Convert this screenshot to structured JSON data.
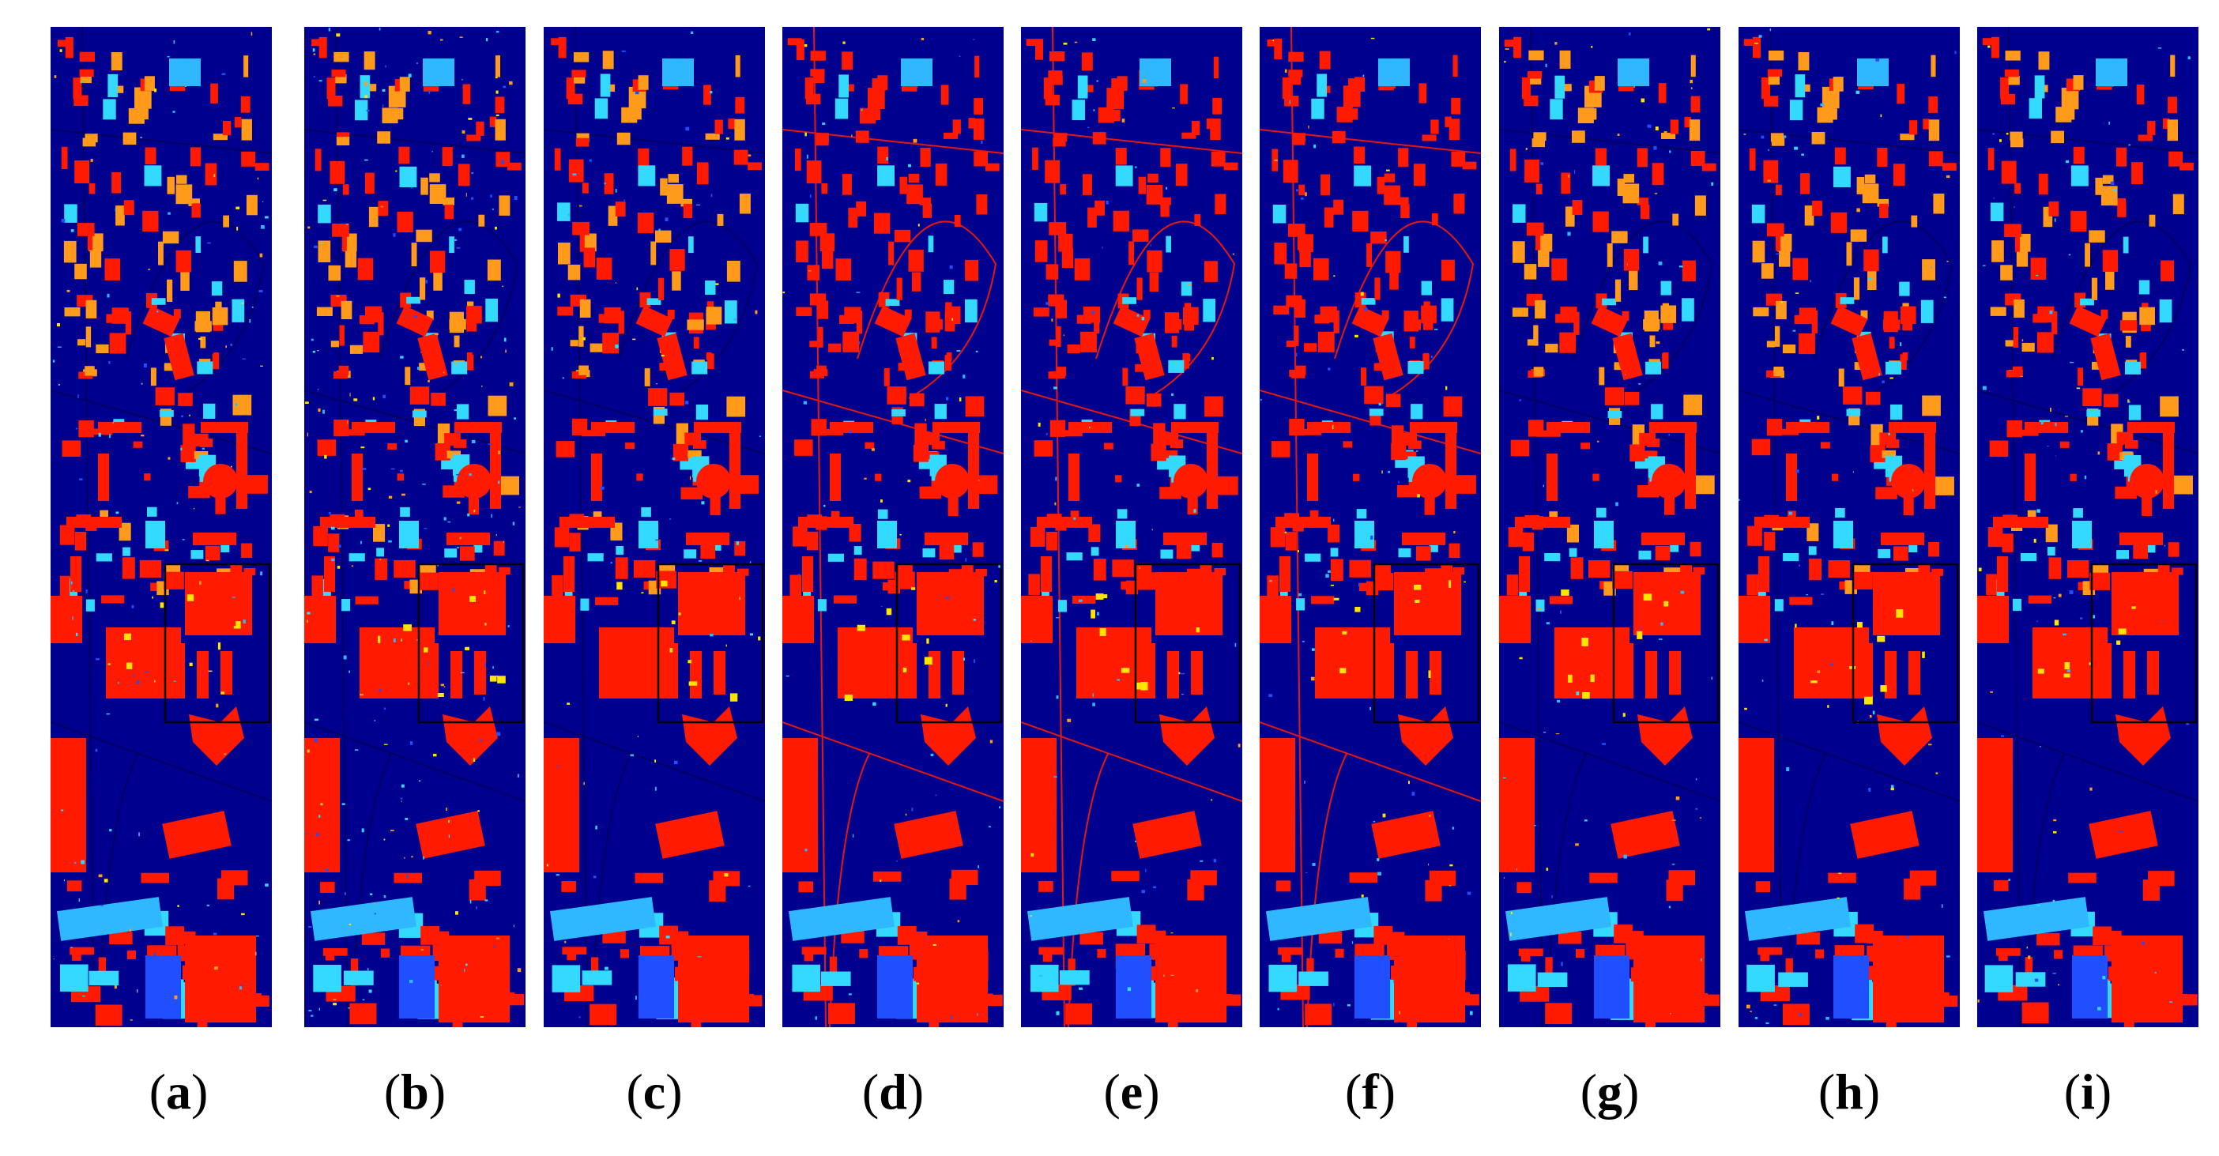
{
  "panels": [
    {
      "label": "a",
      "highlight_box": true
    },
    {
      "label": "b",
      "highlight_box": true
    },
    {
      "label": "c",
      "highlight_box": true
    },
    {
      "label": "d",
      "highlight_box": true
    },
    {
      "label": "e",
      "highlight_box": true
    },
    {
      "label": "f",
      "highlight_box": true
    },
    {
      "label": "g",
      "highlight_box": true
    },
    {
      "label": "h",
      "highlight_box": true
    },
    {
      "label": "i",
      "highlight_box": true
    }
  ],
  "colors": {
    "background_class": "#00008f",
    "building_red": "#ff1a00",
    "roof_orange": "#ff9a1a",
    "tree_cyan": "#33d9ff",
    "grass_light": "#2fb8ff",
    "shadow_blue": "#1f4fff",
    "road_dark": "#00005f",
    "highlight_yellow": "#ffe400",
    "box_outline": "#000000"
  }
}
